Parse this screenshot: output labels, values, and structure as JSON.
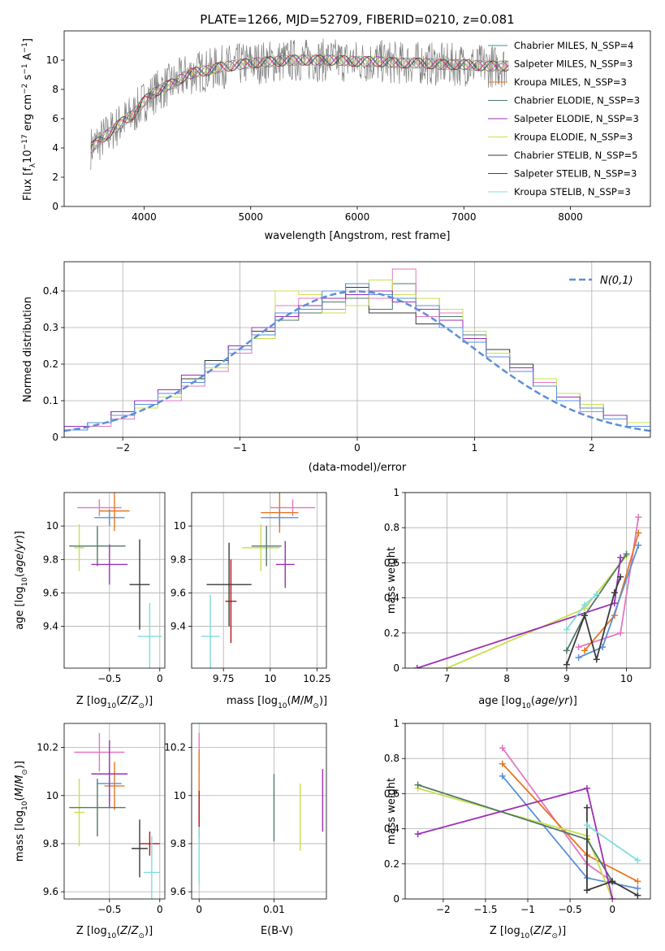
{
  "chart_data": [
    {
      "type": "line",
      "title": "PLATE=1266, MJD=52709, FIBERID=0210, z=0.081",
      "xlabel": "wavelength [Angstrom, rest frame]",
      "ylabel": "Flux [f_λ10^-17 erg cm^-2 s^-1 A^-1]",
      "xlim": [
        3250,
        8750
      ],
      "ylim": [
        0,
        12
      ],
      "xticks": [
        4000,
        5000,
        6000,
        7000,
        8000
      ],
      "yticks": [
        0,
        2,
        4,
        6,
        8,
        10
      ],
      "grid": false,
      "legend_position": "right",
      "series": [
        {
          "name": "Chabrier MILES, N_SSP=4",
          "color": "#3f8fa0"
        },
        {
          "name": "Salpeter MILES, N_SSP=3",
          "color": "#e377c2"
        },
        {
          "name": "Kroupa MILES, N_SSP=3",
          "color": "#e8761f"
        },
        {
          "name": "Chabrier ELODIE, N_SSP=3",
          "color": "#507a66"
        },
        {
          "name": "Salpeter ELODIE, N_SSP=3",
          "color": "#9b30b6"
        },
        {
          "name": "Kroupa ELODIE, N_SSP=3",
          "color": "#c9e04e"
        },
        {
          "name": "Chabrier STELIB, N_SSP=5",
          "color": "#3a3a3a"
        },
        {
          "name": "Salpeter STELIB, N_SSP=3",
          "color": "#b0151a"
        },
        {
          "name": "Kroupa STELIB, N_SSP=3",
          "color": "#7fdcdc"
        }
      ],
      "data_color": "#808080",
      "spectrum": {
        "x": [
          3500,
          3600,
          3700,
          3800,
          3900,
          4000,
          4100,
          4200,
          4300,
          4400,
          4500,
          4600,
          4700,
          4800,
          4900,
          5000,
          5200,
          5400,
          5600,
          5800,
          6000,
          6200,
          6400,
          6600,
          6800,
          7000,
          7200,
          7400
        ],
        "y": [
          4.0,
          4.6,
          5.2,
          5.8,
          6.3,
          7.2,
          7.8,
          8.2,
          8.5,
          9.0,
          9.2,
          9.3,
          9.5,
          9.6,
          9.7,
          9.8,
          9.9,
          10.0,
          10.0,
          10.0,
          9.9,
          9.9,
          9.8,
          9.8,
          9.7,
          9.7,
          9.6,
          9.6
        ]
      }
    },
    {
      "type": "bar",
      "xlabel": "(data-model)/error",
      "ylabel": "Normed distribution",
      "xlim": [
        -2.5,
        2.5
      ],
      "ylim": [
        0,
        0.48
      ],
      "xticks": [
        -2,
        -1,
        0,
        1,
        2
      ],
      "yticks": [
        0.0,
        0.1,
        0.2,
        0.3,
        0.4
      ],
      "grid": true,
      "legend_position": "top-right",
      "legend": "N(0,1)",
      "bin_edges": [
        -2.5,
        -2.3,
        -2.1,
        -1.9,
        -1.7,
        -1.5,
        -1.3,
        -1.1,
        -0.9,
        -0.7,
        -0.5,
        -0.3,
        -0.1,
        0.1,
        0.3,
        0.5,
        0.7,
        0.9,
        1.1,
        1.3,
        1.5,
        1.7,
        1.9,
        2.1,
        2.3,
        2.5
      ],
      "gaussian": {
        "mean": 0,
        "sigma": 1,
        "color": "#5b8fd6"
      },
      "histograms": [
        {
          "color": "#507a66",
          "values": [
            0.02,
            0.04,
            0.06,
            0.08,
            0.12,
            0.15,
            0.2,
            0.24,
            0.3,
            0.32,
            0.34,
            0.37,
            0.38,
            0.35,
            0.42,
            0.38,
            0.33,
            0.28,
            0.24,
            0.19,
            0.15,
            0.12,
            0.08,
            0.06,
            0.03
          ]
        },
        {
          "color": "#e377c2",
          "values": [
            0.02,
            0.03,
            0.05,
            0.09,
            0.1,
            0.14,
            0.18,
            0.23,
            0.27,
            0.36,
            0.38,
            0.35,
            0.42,
            0.38,
            0.46,
            0.33,
            0.34,
            0.27,
            0.23,
            0.2,
            0.15,
            0.1,
            0.07,
            0.05,
            0.04
          ]
        },
        {
          "color": "#3a3a3a",
          "values": [
            0.03,
            0.04,
            0.07,
            0.08,
            0.12,
            0.16,
            0.21,
            0.25,
            0.29,
            0.33,
            0.35,
            0.38,
            0.41,
            0.34,
            0.34,
            0.31,
            0.32,
            0.26,
            0.24,
            0.2,
            0.14,
            0.11,
            0.09,
            0.05,
            0.03
          ]
        },
        {
          "color": "#c9e04e",
          "values": [
            0.02,
            0.04,
            0.06,
            0.08,
            0.11,
            0.15,
            0.19,
            0.24,
            0.27,
            0.4,
            0.39,
            0.34,
            0.36,
            0.43,
            0.39,
            0.38,
            0.35,
            0.29,
            0.23,
            0.18,
            0.16,
            0.12,
            0.09,
            0.06,
            0.04
          ]
        },
        {
          "color": "#9b30b6",
          "values": [
            0.03,
            0.04,
            0.07,
            0.1,
            0.13,
            0.17,
            0.2,
            0.25,
            0.3,
            0.33,
            0.36,
            0.38,
            0.39,
            0.4,
            0.37,
            0.35,
            0.32,
            0.27,
            0.22,
            0.19,
            0.14,
            0.11,
            0.08,
            0.06,
            0.03
          ]
        },
        {
          "color": "#5b8fd6",
          "values": [
            0.02,
            0.04,
            0.06,
            0.09,
            0.12,
            0.15,
            0.2,
            0.24,
            0.28,
            0.34,
            0.35,
            0.4,
            0.42,
            0.39,
            0.38,
            0.36,
            0.3,
            0.26,
            0.22,
            0.18,
            0.14,
            0.1,
            0.08,
            0.05,
            0.03
          ]
        }
      ]
    },
    {
      "type": "scatter",
      "xlabel": "Z [log10(Z/Z_sun)]",
      "ylabel": "age [log10(age/yr)]",
      "xlim": [
        -0.95,
        0.05
      ],
      "ylim": [
        9.15,
        10.2
      ],
      "xticks": [
        -0.5,
        0.0
      ],
      "yticks": [
        9.4,
        9.6,
        9.8,
        10.0
      ],
      "grid": true,
      "points": [
        {
          "color": "#e377c2",
          "x": -0.6,
          "y": 10.11,
          "xerr": 0.22,
          "yerr": 0.05
        },
        {
          "color": "#e8761f",
          "x": -0.45,
          "y": 10.09,
          "xerr": 0.15,
          "yerr": 0.12
        },
        {
          "color": "#5b8fd6",
          "x": -0.5,
          "y": 10.05,
          "xerr": 0.15,
          "yerr": 0.05
        },
        {
          "color": "#c9e04e",
          "x": -0.8,
          "y": 9.87,
          "xerr": 0.05,
          "yerr": 0.14
        },
        {
          "color": "#507a66",
          "x": -0.62,
          "y": 9.88,
          "xerr": 0.28,
          "yerr": 0.12
        },
        {
          "color": "#9b30b6",
          "x": -0.5,
          "y": 9.77,
          "xerr": 0.18,
          "yerr": 0.12
        },
        {
          "color": "#3a3a3a",
          "x": -0.2,
          "y": 9.65,
          "xerr": 0.1,
          "yerr": 0.27
        },
        {
          "color": "#7fdcdc",
          "x": -0.1,
          "y": 9.34,
          "xerr": 0.12,
          "yerr": 0.2
        }
      ]
    },
    {
      "type": "scatter",
      "xlabel": "mass [log10(M/M_sun)]",
      "ylabel": "",
      "xlim": [
        9.58,
        10.3
      ],
      "ylim": [
        9.15,
        10.2
      ],
      "xticks": [
        9.75,
        10.0,
        10.25
      ],
      "yticks": [
        9.4,
        9.6,
        9.8,
        10.0
      ],
      "grid": true,
      "points": [
        {
          "color": "#e377c2",
          "x": 10.12,
          "y": 10.11,
          "xerr": 0.12,
          "yerr": 0.05
        },
        {
          "color": "#e8761f",
          "x": 10.05,
          "y": 10.08,
          "xerr": 0.1,
          "yerr": 0.12
        },
        {
          "color": "#5b8fd6",
          "x": 10.05,
          "y": 10.05,
          "xerr": 0.1,
          "yerr": 0.05
        },
        {
          "color": "#c9e04e",
          "x": 9.95,
          "y": 9.87,
          "xerr": 0.1,
          "yerr": 0.14
        },
        {
          "color": "#507a66",
          "x": 9.98,
          "y": 9.88,
          "xerr": 0.08,
          "yerr": 0.12
        },
        {
          "color": "#9b30b6",
          "x": 10.08,
          "y": 9.77,
          "xerr": 0.05,
          "yerr": 0.14
        },
        {
          "color": "#3a3a3a",
          "x": 9.78,
          "y": 9.65,
          "xerr": 0.12,
          "yerr": 0.25
        },
        {
          "color": "#b0151a",
          "x": 9.79,
          "y": 9.55,
          "xerr": 0.03,
          "yerr": 0.25
        },
        {
          "color": "#7fdcdc",
          "x": 9.68,
          "y": 9.34,
          "xerr": 0.05,
          "yerr": 0.25
        }
      ]
    },
    {
      "type": "line",
      "xlabel": "age [log10(age/yr)]",
      "ylabel": "mass weight",
      "xlim": [
        6.3,
        10.4
      ],
      "ylim": [
        0.0,
        1.0
      ],
      "xticks": [
        7,
        8,
        9,
        10
      ],
      "yticks": [
        0.0,
        0.2,
        0.4,
        0.6,
        0.8,
        1.0
      ],
      "grid": true,
      "series": [
        {
          "color": "#e377c2",
          "x": [
            9.2,
            9.9,
            10.2
          ],
          "y": [
            0.12,
            0.2,
            0.86
          ]
        },
        {
          "color": "#e8761f",
          "x": [
            9.3,
            9.8,
            10.2
          ],
          "y": [
            0.1,
            0.3,
            0.77
          ]
        },
        {
          "color": "#5b8fd6",
          "x": [
            9.2,
            9.6,
            10.2
          ],
          "y": [
            0.06,
            0.12,
            0.7
          ]
        },
        {
          "color": "#c9e04e",
          "x": [
            7.0,
            9.3,
            10.0
          ],
          "y": [
            0.0,
            0.34,
            0.64
          ]
        },
        {
          "color": "#507a66",
          "x": [
            9.0,
            9.3,
            10.0
          ],
          "y": [
            0.1,
            0.3,
            0.65
          ]
        },
        {
          "color": "#9b30b6",
          "x": [
            6.5,
            9.8,
            9.9
          ],
          "y": [
            0.0,
            0.37,
            0.63
          ]
        },
        {
          "color": "#3a3a3a",
          "x": [
            9.0,
            9.3,
            9.5,
            9.8,
            9.9
          ],
          "y": [
            0.02,
            0.3,
            0.05,
            0.43,
            0.52
          ]
        },
        {
          "color": "#7fdcdc",
          "x": [
            9.0,
            9.3,
            9.5
          ],
          "y": [
            0.22,
            0.36,
            0.42
          ]
        }
      ]
    },
    {
      "type": "scatter",
      "xlabel": "Z [log10(Z/Z_sun)]",
      "ylabel": "mass [log10(M/M_sun)]",
      "xlim": [
        -0.95,
        0.05
      ],
      "ylim": [
        9.57,
        10.3
      ],
      "xticks": [
        -0.5,
        0.0
      ],
      "yticks": [
        9.6,
        9.8,
        10.0,
        10.2
      ],
      "grid": true,
      "points": [
        {
          "color": "#e377c2",
          "x": -0.6,
          "y": 10.18,
          "xerr": 0.25,
          "yerr": 0.08
        },
        {
          "color": "#e8761f",
          "x": -0.45,
          "y": 10.04,
          "xerr": 0.1,
          "yerr": 0.1
        },
        {
          "color": "#5b8fd6",
          "x": -0.5,
          "y": 10.05,
          "xerr": 0.12,
          "yerr": 0.08
        },
        {
          "color": "#9b30b6",
          "x": -0.5,
          "y": 10.09,
          "xerr": 0.18,
          "yerr": 0.14
        },
        {
          "color": "#c9e04e",
          "x": -0.8,
          "y": 9.93,
          "xerr": 0.05,
          "yerr": 0.14
        },
        {
          "color": "#507a66",
          "x": -0.62,
          "y": 9.95,
          "xerr": 0.28,
          "yerr": 0.12
        },
        {
          "color": "#3a3a3a",
          "x": -0.2,
          "y": 9.78,
          "xerr": 0.08,
          "yerr": 0.12
        },
        {
          "color": "#b0151a",
          "x": -0.1,
          "y": 9.8,
          "xerr": 0.1,
          "yerr": 0.05
        },
        {
          "color": "#7fdcdc",
          "x": -0.08,
          "y": 9.68,
          "xerr": 0.08,
          "yerr": 0.15
        }
      ]
    },
    {
      "type": "scatter",
      "xlabel": "E(B-V)",
      "ylabel": "",
      "xlim": [
        -0.001,
        0.017
      ],
      "ylim": [
        9.57,
        10.3
      ],
      "xticks": [
        0.0,
        0.01
      ],
      "yticks": [
        9.6,
        9.8,
        10.0,
        10.2
      ],
      "grid": true,
      "points": [
        {
          "color": "#e377c2",
          "x": 0.0,
          "y": 10.18,
          "yerr": 0.08
        },
        {
          "color": "#e8761f",
          "x": 0.0,
          "y": 10.04,
          "yerr": 0.15
        },
        {
          "color": "#b0151a",
          "x": 0.0,
          "y": 9.92,
          "yerr": 0.1
        },
        {
          "color": "#7fdcdc",
          "x": 0.0,
          "y": 9.75,
          "yerr": 0.12
        },
        {
          "color": "#507a66",
          "x": 0.01,
          "y": 9.95,
          "yerr": 0.14
        },
        {
          "color": "#c9e04e",
          "x": 0.0135,
          "y": 9.91,
          "yerr": 0.14
        },
        {
          "color": "#9b30b6",
          "x": 0.0165,
          "y": 9.98,
          "yerr": 0.13
        }
      ]
    },
    {
      "type": "line",
      "xlabel": "Z [log10(Z/Z_sun)]",
      "ylabel": "mass weight",
      "xlim": [
        -2.45,
        0.45
      ],
      "ylim": [
        0.0,
        1.0
      ],
      "xticks": [
        -2.0,
        -1.5,
        -1.0,
        -0.5,
        0.0
      ],
      "yticks": [
        0.0,
        0.2,
        0.4,
        0.6,
        0.8,
        1.0
      ],
      "grid": true,
      "series": [
        {
          "color": "#e377c2",
          "x": [
            -1.3,
            -0.3,
            0.0
          ],
          "y": [
            0.86,
            0.2,
            0.1
          ]
        },
        {
          "color": "#e8761f",
          "x": [
            -1.3,
            -0.3,
            0.3
          ],
          "y": [
            0.77,
            0.25,
            0.1
          ]
        },
        {
          "color": "#5b8fd6",
          "x": [
            -1.3,
            -0.3,
            0.3
          ],
          "y": [
            0.7,
            0.12,
            0.06
          ]
        },
        {
          "color": "#c9e04e",
          "x": [
            -2.3,
            -0.3,
            0.0
          ],
          "y": [
            0.63,
            0.36,
            0.0
          ]
        },
        {
          "color": "#507a66",
          "x": [
            -2.3,
            -0.3,
            0.0
          ],
          "y": [
            0.65,
            0.34,
            0.1
          ]
        },
        {
          "color": "#9b30b6",
          "x": [
            -2.3,
            -0.3,
            0.0
          ],
          "y": [
            0.37,
            0.63,
            0.0
          ]
        },
        {
          "color": "#3a3a3a",
          "x": [
            -0.3,
            -0.3,
            0.0,
            0.3
          ],
          "y": [
            0.52,
            0.05,
            0.1,
            0.02
          ]
        },
        {
          "color": "#7fdcdc",
          "x": [
            -0.3,
            0.3
          ],
          "y": [
            0.42,
            0.22
          ]
        }
      ]
    }
  ]
}
